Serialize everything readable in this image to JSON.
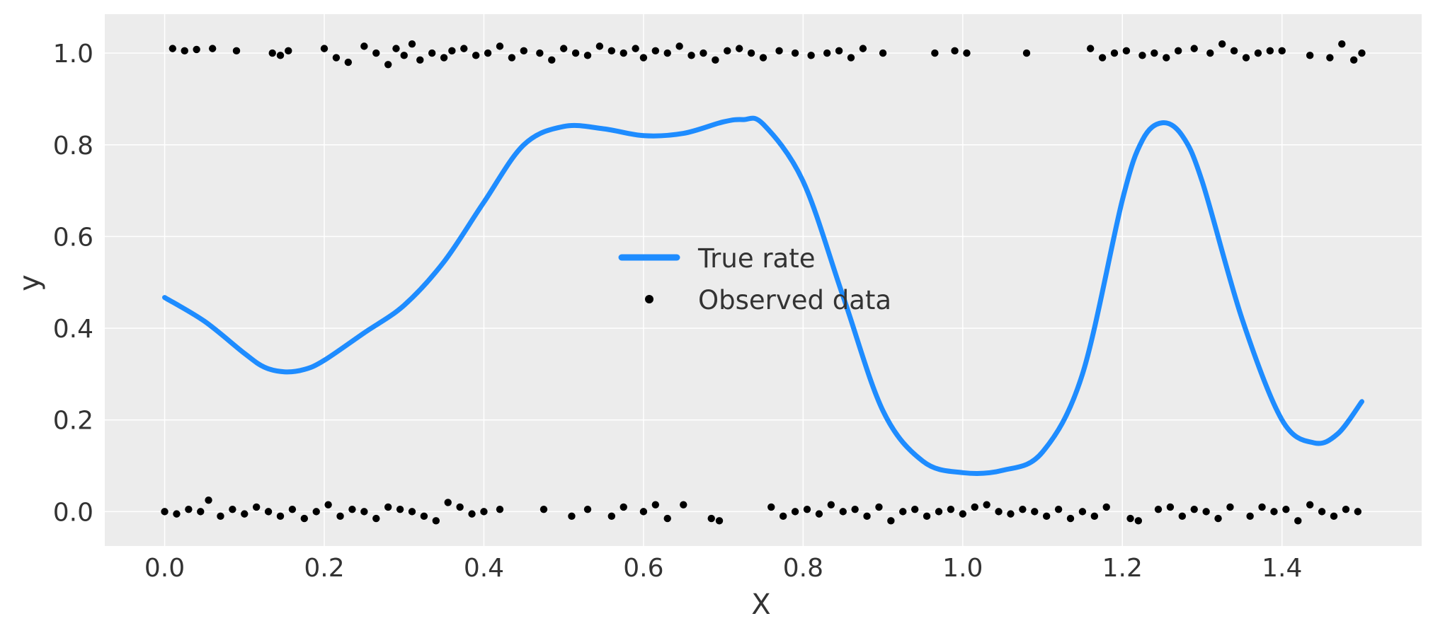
{
  "chart_data": {
    "type": "line+scatter",
    "title": "",
    "xlabel": "X",
    "ylabel": "y",
    "xlim": [
      -0.075,
      1.575
    ],
    "ylim": [
      -0.075,
      1.085
    ],
    "x_ticks": [
      0.0,
      0.2,
      0.4,
      0.6,
      0.8,
      1.0,
      1.2,
      1.4
    ],
    "x_tick_labels": [
      "0.0",
      "0.2",
      "0.4",
      "0.6",
      "0.8",
      "1.0",
      "1.2",
      "1.4"
    ],
    "y_ticks": [
      0.0,
      0.2,
      0.4,
      0.6,
      0.8,
      1.0
    ],
    "y_tick_labels": [
      "0.0",
      "0.2",
      "0.4",
      "0.6",
      "0.8",
      "1.0"
    ],
    "grid": true,
    "legend_position": "center",
    "background_color": "#ececec",
    "series": [
      {
        "name": "True rate",
        "kind": "line",
        "color": "#1e8cff",
        "x": [
          0.0,
          0.05,
          0.1,
          0.125,
          0.15,
          0.175,
          0.2,
          0.25,
          0.3,
          0.35,
          0.4,
          0.45,
          0.5,
          0.55,
          0.6,
          0.65,
          0.7,
          0.725,
          0.75,
          0.8,
          0.85,
          0.9,
          0.95,
          1.0,
          1.05,
          1.1,
          1.15,
          1.2,
          1.225,
          1.25,
          1.275,
          1.3,
          1.35,
          1.4,
          1.44,
          1.47,
          1.5
        ],
        "y": [
          0.467,
          0.415,
          0.345,
          0.315,
          0.305,
          0.31,
          0.33,
          0.39,
          0.45,
          0.545,
          0.675,
          0.8,
          0.84,
          0.835,
          0.82,
          0.825,
          0.85,
          0.855,
          0.845,
          0.72,
          0.47,
          0.22,
          0.11,
          0.085,
          0.09,
          0.13,
          0.3,
          0.68,
          0.81,
          0.848,
          0.82,
          0.72,
          0.42,
          0.2,
          0.15,
          0.17,
          0.24
        ]
      },
      {
        "name": "Observed data",
        "kind": "scatter",
        "color": "#000000",
        "x_top": [
          0.01,
          0.025,
          0.04,
          0.06,
          0.09,
          0.135,
          0.145,
          0.155,
          0.2,
          0.215,
          0.23,
          0.25,
          0.265,
          0.28,
          0.29,
          0.3,
          0.31,
          0.32,
          0.335,
          0.35,
          0.36,
          0.375,
          0.39,
          0.405,
          0.42,
          0.435,
          0.45,
          0.47,
          0.485,
          0.5,
          0.515,
          0.53,
          0.545,
          0.56,
          0.575,
          0.59,
          0.6,
          0.615,
          0.63,
          0.645,
          0.66,
          0.675,
          0.69,
          0.705,
          0.72,
          0.735,
          0.75,
          0.77,
          0.79,
          0.81,
          0.83,
          0.845,
          0.86,
          0.875,
          0.9,
          0.965,
          0.99,
          1.005,
          1.08,
          1.16,
          1.175,
          1.19,
          1.205,
          1.225,
          1.24,
          1.255,
          1.27,
          1.29,
          1.31,
          1.325,
          1.34,
          1.355,
          1.37,
          1.385,
          1.4,
          1.435,
          1.46,
          1.475,
          1.49,
          1.5
        ],
        "y_top": [
          1.01,
          1.005,
          1.008,
          1.01,
          1.005,
          1.0,
          0.995,
          1.005,
          1.01,
          0.99,
          0.98,
          1.015,
          1.0,
          0.975,
          1.01,
          0.995,
          1.02,
          0.985,
          1.0,
          0.99,
          1.005,
          1.01,
          0.995,
          1.0,
          1.015,
          0.99,
          1.005,
          1.0,
          0.985,
          1.01,
          1.0,
          0.995,
          1.015,
          1.005,
          1.0,
          1.01,
          0.99,
          1.005,
          1.0,
          1.015,
          0.995,
          1.0,
          0.985,
          1.005,
          1.01,
          1.0,
          0.99,
          1.005,
          1.0,
          0.995,
          1.0,
          1.005,
          0.99,
          1.01,
          1.0,
          1.0,
          1.005,
          1.0,
          1.0,
          1.01,
          0.99,
          1.0,
          1.005,
          0.995,
          1.0,
          0.99,
          1.005,
          1.01,
          1.0,
          1.02,
          1.005,
          0.99,
          1.0,
          1.005,
          1.005,
          0.995,
          0.99,
          1.02,
          0.985,
          1.0
        ],
        "x_bottom": [
          0.0,
          0.015,
          0.03,
          0.045,
          0.055,
          0.07,
          0.085,
          0.1,
          0.115,
          0.13,
          0.145,
          0.16,
          0.175,
          0.19,
          0.205,
          0.22,
          0.235,
          0.25,
          0.265,
          0.28,
          0.295,
          0.31,
          0.325,
          0.34,
          0.355,
          0.37,
          0.385,
          0.4,
          0.42,
          0.475,
          0.51,
          0.53,
          0.56,
          0.575,
          0.6,
          0.615,
          0.63,
          0.65,
          0.685,
          0.695,
          0.76,
          0.775,
          0.79,
          0.805,
          0.82,
          0.835,
          0.85,
          0.865,
          0.88,
          0.895,
          0.91,
          0.925,
          0.94,
          0.955,
          0.97,
          0.985,
          1.0,
          1.015,
          1.03,
          1.045,
          1.06,
          1.075,
          1.09,
          1.105,
          1.12,
          1.135,
          1.15,
          1.165,
          1.18,
          1.21,
          1.22,
          1.245,
          1.26,
          1.275,
          1.29,
          1.305,
          1.32,
          1.335,
          1.36,
          1.375,
          1.39,
          1.405,
          1.42,
          1.435,
          1.45,
          1.465,
          1.48,
          1.495
        ],
        "y_bottom": [
          0.0,
          -0.005,
          0.005,
          0.0,
          0.025,
          -0.01,
          0.005,
          -0.005,
          0.01,
          0.0,
          -0.01,
          0.005,
          -0.015,
          0.0,
          0.015,
          -0.01,
          0.005,
          0.0,
          -0.015,
          0.01,
          0.005,
          0.0,
          -0.01,
          -0.02,
          0.02,
          0.01,
          -0.005,
          0.0,
          0.005,
          0.005,
          -0.01,
          0.005,
          -0.01,
          0.01,
          0.0,
          0.015,
          -0.015,
          0.015,
          -0.015,
          -0.02,
          0.01,
          -0.01,
          0.0,
          0.005,
          -0.005,
          0.015,
          0.0,
          0.005,
          -0.01,
          0.01,
          -0.02,
          0.0,
          0.005,
          -0.01,
          0.0,
          0.005,
          -0.005,
          0.01,
          0.015,
          0.0,
          -0.005,
          0.005,
          0.0,
          -0.01,
          0.005,
          -0.015,
          0.0,
          -0.01,
          0.01,
          -0.015,
          -0.02,
          0.005,
          0.01,
          -0.01,
          0.005,
          0.0,
          -0.015,
          0.01,
          -0.01,
          0.01,
          0.0,
          0.005,
          -0.02,
          0.015,
          0.0,
          -0.01,
          0.005,
          0.0
        ]
      }
    ]
  }
}
